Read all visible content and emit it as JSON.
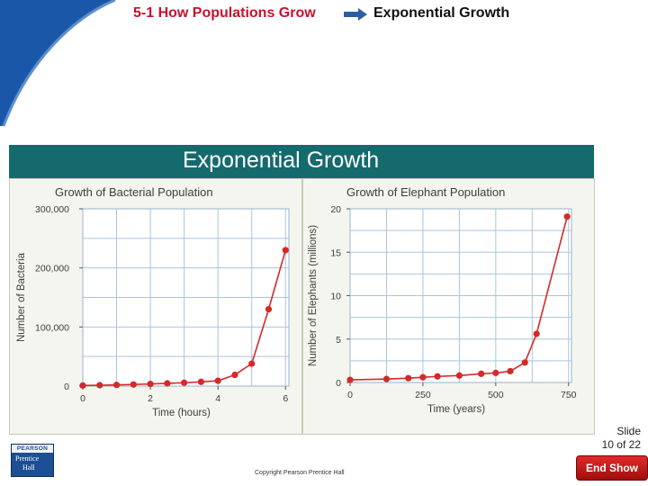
{
  "header": {
    "section": "5-1 How Populations Grow",
    "topic": "Exponential Growth"
  },
  "banner": {
    "title": "Exponential Growth"
  },
  "chart_data": [
    {
      "type": "line",
      "title": "Growth of Bacterial Population",
      "xlabel": "Time (hours)",
      "ylabel": "Number of Bacteria",
      "xlim": [
        0,
        6.1
      ],
      "ylim": [
        0,
        300000
      ],
      "xticks": [
        0,
        2,
        4,
        6
      ],
      "yticks": [
        0,
        100000,
        200000,
        300000
      ],
      "ytick_labels": [
        "0",
        "100,000",
        "200,000",
        "300,000"
      ],
      "grid": true,
      "series": [
        {
          "x": [
            0,
            0.5,
            1,
            1.5,
            2,
            2.5,
            3,
            3.5,
            4,
            4.5,
            5,
            5.5,
            6
          ],
          "y": [
            1000,
            1500,
            2000,
            2700,
            3600,
            4600,
            5700,
            7200,
            9000,
            19000,
            38000,
            130000,
            230000
          ],
          "color": "#d62828"
        }
      ]
    },
    {
      "type": "line",
      "title": "Growth of Elephant Population",
      "xlabel": "Time (years)",
      "ylabel": "Number of Elephants (millions)",
      "xlim": [
        0,
        760
      ],
      "ylim": [
        0,
        20
      ],
      "xticks": [
        0,
        250,
        500,
        750
      ],
      "yticks": [
        0,
        5,
        10,
        15,
        20
      ],
      "grid": true,
      "series": [
        {
          "x": [
            0,
            125,
            200,
            250,
            300,
            375,
            450,
            500,
            550,
            600,
            640,
            745
          ],
          "y": [
            0.3,
            0.4,
            0.5,
            0.6,
            0.7,
            0.8,
            1.0,
            1.1,
            1.3,
            2.3,
            5.6,
            19.1
          ],
          "color": "#d62828"
        }
      ]
    }
  ],
  "footer": {
    "slide_label": "Slide",
    "slide_num": "10 of 22",
    "logo_top": "PEARSON",
    "logo_line1": "Prentice",
    "logo_line2": "Hall",
    "copyright": "Copyright Pearson Prentice Hall",
    "end_show": "End Show"
  },
  "colors": {
    "banner": "#156a6e",
    "section_title": "#c8102e",
    "series": "#d62828",
    "grid": "#a8c5dd"
  }
}
